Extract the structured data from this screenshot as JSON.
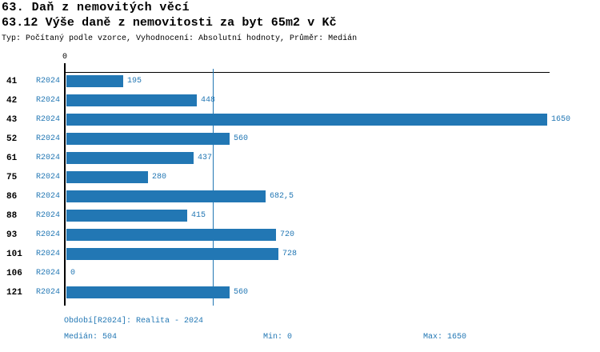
{
  "header": {
    "title": "63. Daň z nemovitých věcí",
    "subtitle": "63.12 Výše daně z nemovitosti za byt 65m2 v Kč",
    "meta": "Typ: Počítaný podle vzorce, Vyhodnocení: Absolutní hodnoty, Průměr: Medián"
  },
  "chart_data": {
    "type": "bar",
    "orientation": "horizontal",
    "title": "63.12 Výše daně z nemovitosti za byt 65m2 v Kč",
    "categories": [
      "41",
      "42",
      "43",
      "52",
      "61",
      "75",
      "86",
      "88",
      "93",
      "101",
      "106",
      "121"
    ],
    "series_label": "R2024",
    "values": [
      195,
      448,
      1650,
      560,
      437,
      280,
      682.5,
      415,
      720,
      728,
      0,
      560
    ],
    "value_labels": [
      "195",
      "448",
      "1650",
      "560",
      "437",
      "280",
      "682,5",
      "415",
      "720",
      "728",
      "0",
      "560"
    ],
    "xlim": [
      0,
      1650
    ],
    "x_tick_label": "0",
    "median_value": 504,
    "median": 504,
    "min": 0,
    "max": 1650,
    "grid": "median-line-only",
    "legend_position": "none",
    "bar_color": "#2277b4"
  },
  "footer": {
    "period": "Období[R2024]: Realita - 2024",
    "median": "Medián: 504",
    "min": "Min: 0",
    "max": "Max: 1650"
  }
}
